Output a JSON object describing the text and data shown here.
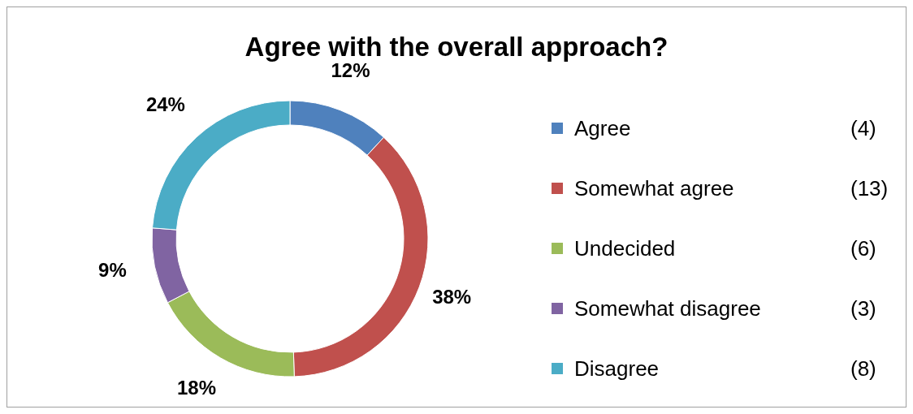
{
  "chart_data": {
    "type": "donut",
    "title": "Agree with the overall approach?",
    "categories": [
      "Agree",
      "Somewhat agree",
      "Undecided",
      "Somewhat disagree",
      "Disagree"
    ],
    "values": [
      12,
      38,
      18,
      9,
      24
    ],
    "value_labels": [
      "12%",
      "38%",
      "18%",
      "9%",
      "24%"
    ],
    "colors": [
      "#4f81bd",
      "#c0504d",
      "#9bbb59",
      "#8064a2",
      "#4bacc6"
    ],
    "annotations": [
      "(4)",
      "(13)",
      "(6)",
      "(3)",
      "(8)"
    ],
    "legend": "right"
  }
}
